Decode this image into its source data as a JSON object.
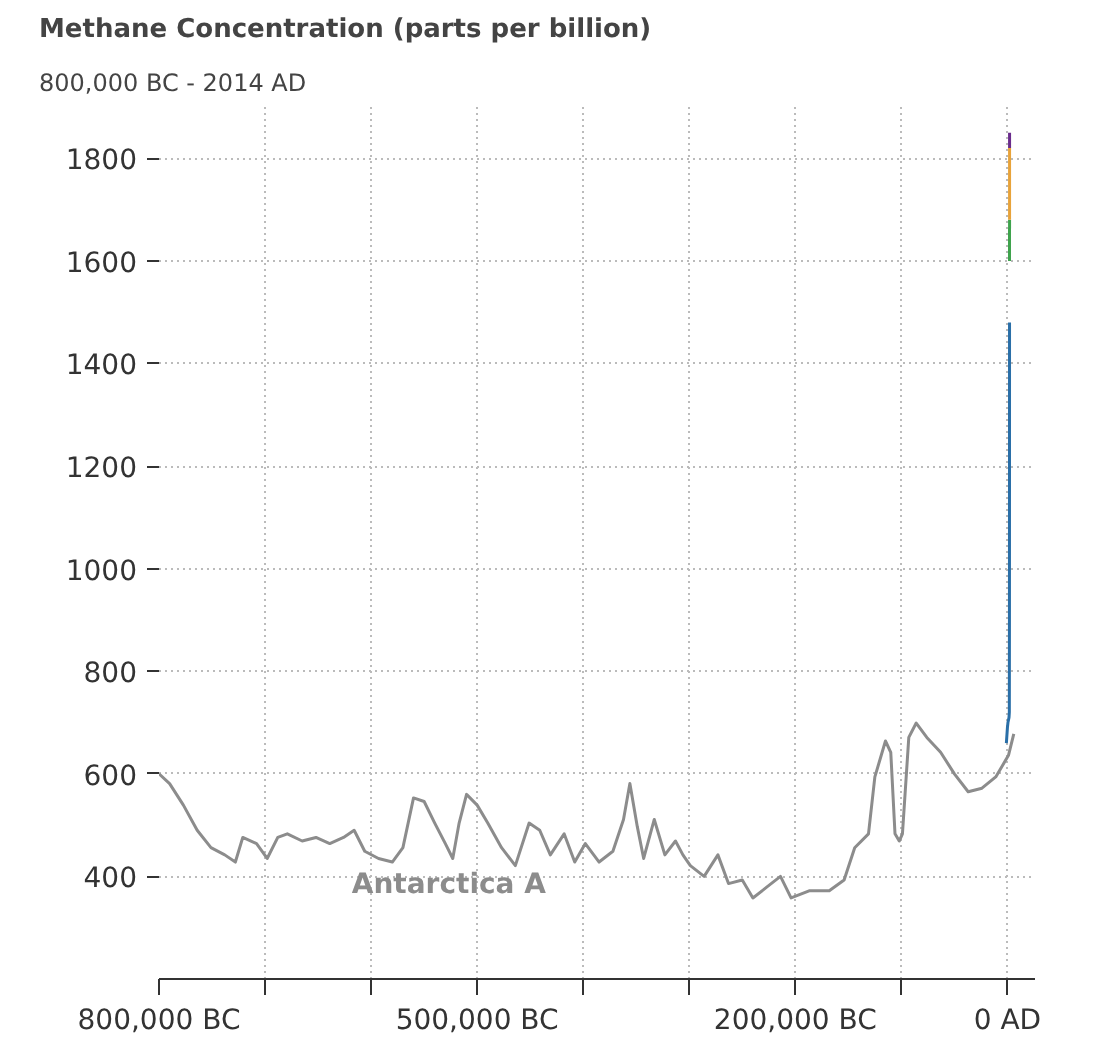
{
  "chart_data": {
    "type": "line",
    "title": "Methane Concentration (parts per billion)",
    "subtitle": "800,000 BC - 2014 AD",
    "xlim": [
      -800000,
      26000
    ],
    "ylim": [
      200,
      1900
    ],
    "xticks": [
      {
        "value": -800000,
        "label": "800,000 BC"
      },
      {
        "value": -700000,
        "label": null
      },
      {
        "value": -600000,
        "label": null
      },
      {
        "value": -500000,
        "label": "500,000 BC"
      },
      {
        "value": -400000,
        "label": null
      },
      {
        "value": -300000,
        "label": null
      },
      {
        "value": -200000,
        "label": "200,000 BC"
      },
      {
        "value": -100000,
        "label": null
      },
      {
        "value": 0,
        "label": "0 AD"
      }
    ],
    "yticks": [
      400,
      600,
      800,
      1000,
      1200,
      1400,
      1600,
      1800
    ],
    "grid": true,
    "line_style": "solid",
    "series": [
      {
        "name": "Antarctica A",
        "color": "#8c8c8c",
        "x": [
          -800000,
          -790000,
          -777000,
          -764000,
          -751000,
          -738000,
          -728000,
          -721000,
          -708000,
          -698000,
          -688000,
          -679000,
          -665000,
          -652000,
          -639000,
          -626000,
          -616000,
          -606000,
          -593000,
          -580000,
          -570000,
          -560000,
          -550000,
          -540000,
          -530000,
          -523000,
          -517000,
          -510000,
          -500000,
          -490000,
          -477000,
          -464000,
          -451000,
          -441000,
          -431000,
          -418000,
          -408000,
          -398000,
          -385000,
          -372000,
          -362000,
          -356000,
          -349000,
          -343000,
          -333000,
          -323000,
          -313000,
          -306000,
          -299000,
          -286000,
          -273000,
          -263000,
          -250000,
          -240000,
          -227000,
          -214000,
          -204000,
          -187000,
          -168000,
          -154000,
          -144000,
          -131000,
          -125000,
          -115000,
          -110000,
          -106000,
          -102000,
          -99000,
          -93000,
          -86000,
          -76000,
          -63000,
          -50000,
          -37000,
          -24000,
          -11000,
          1000,
          6000
        ],
        "values": [
          600,
          581,
          539,
          490,
          456,
          442,
          428,
          476,
          464,
          435,
          476,
          483,
          469,
          476,
          464,
          476,
          490,
          449,
          435,
          428,
          456,
          553,
          546,
          504,
          464,
          435,
          504,
          560,
          539,
          504,
          456,
          421,
          504,
          490,
          442,
          483,
          428,
          464,
          428,
          449,
          511,
          581,
          497,
          435,
          511,
          442,
          469,
          442,
          421,
          400,
          442,
          386,
          393,
          358,
          379,
          400,
          358,
          372,
          372,
          393,
          456,
          483,
          594,
          664,
          642,
          483,
          469,
          483,
          671,
          699,
          671,
          642,
          600,
          565,
          572,
          594,
          636,
          678
        ]
      },
      {
        "color": "#2a6fa8",
        "x": [
          -1000,
          0,
          500,
          1000,
          1500,
          1800,
          1900,
          1950,
          1980
        ],
        "values": [
          660,
          690,
          700,
          705,
          710,
          720,
          900,
          1150,
          1480
        ]
      },
      {
        "color": "#3fa34d",
        "x": [
          1984,
          1990
        ],
        "values": [
          1600,
          1680
        ]
      },
      {
        "color": "#e8a33a",
        "x": [
          1990,
          2005
        ],
        "values": [
          1680,
          1820
        ]
      },
      {
        "color": "#6a2c8c",
        "x": [
          2005,
          2014
        ],
        "values": [
          1820,
          1850
        ]
      }
    ]
  }
}
